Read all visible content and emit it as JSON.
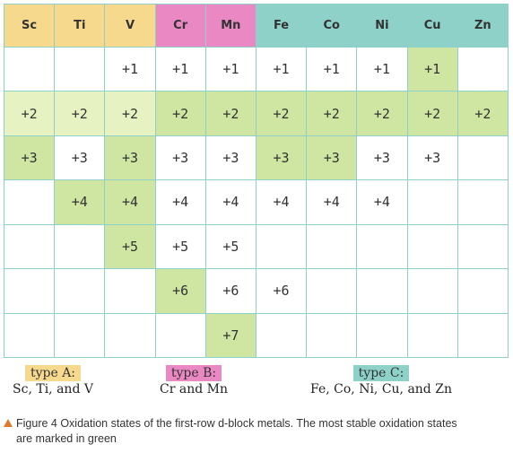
{
  "headers": [
    {
      "label": "Sc",
      "group": "A"
    },
    {
      "label": "Ti",
      "group": "A"
    },
    {
      "label": "V",
      "group": "A"
    },
    {
      "label": "Cr",
      "group": "B"
    },
    {
      "label": "Mn",
      "group": "B"
    },
    {
      "label": "Fe",
      "group": "C"
    },
    {
      "label": "Co",
      "group": "C"
    },
    {
      "label": "Ni",
      "group": "C"
    },
    {
      "label": "Cu",
      "group": "C"
    },
    {
      "label": "Zn",
      "group": "C"
    }
  ],
  "rows": [
    [
      "",
      "",
      "+1",
      "+1",
      "+1",
      "+1",
      "+1",
      "+1",
      "+1",
      ""
    ],
    [
      "+2",
      "+2",
      "+2",
      "+2",
      "+2",
      "+2",
      "+2",
      "+2",
      "+2",
      "+2"
    ],
    [
      "+3",
      "+3",
      "+3",
      "+3",
      "+3",
      "+3",
      "+3",
      "+3",
      "+3",
      ""
    ],
    [
      "",
      "+4",
      "+4",
      "+4",
      "+4",
      "+4",
      "+4",
      "+4",
      "",
      ""
    ],
    [
      "",
      "",
      "+5",
      "+5",
      "+5",
      "",
      "",
      "",
      "",
      ""
    ],
    [
      "",
      "",
      "",
      "+6",
      "+6",
      "+6",
      "",
      "",
      "",
      ""
    ],
    [
      "",
      "",
      "",
      "",
      "+7",
      "",
      "",
      "",
      "",
      ""
    ]
  ],
  "most_stable": [
    [
      0,
      8
    ],
    [
      1,
      3
    ],
    [
      1,
      4
    ],
    [
      1,
      5
    ],
    [
      1,
      6
    ],
    [
      1,
      7
    ],
    [
      1,
      8
    ],
    [
      1,
      9
    ],
    [
      2,
      0
    ],
    [
      2,
      2
    ],
    [
      2,
      5
    ],
    [
      2,
      6
    ],
    [
      3,
      1
    ],
    [
      3,
      2
    ],
    [
      4,
      2
    ],
    [
      5,
      3
    ],
    [
      6,
      4
    ]
  ],
  "highlighted_rows": [
    1
  ],
  "legend": {
    "a": {
      "tag": "type A:",
      "desc": "Sc, Ti, and V"
    },
    "b": {
      "tag": "type B:",
      "desc": "Cr and Mn"
    },
    "c": {
      "tag": "type C:",
      "desc": "Fe, Co, Ni, Cu, and Zn"
    }
  },
  "caption": {
    "line1": "Figure 4 Oxidation states of the first-row d-block metals. The most stable oxidation states",
    "line2": "are marked in green"
  },
  "colors": {
    "type_a": "#f7d98e",
    "type_b": "#ea88c3",
    "type_c": "#8dd1c9",
    "most_stable_green": "#cfe6a2",
    "row_tint": "#e6f2c2",
    "grid_line": "#8fd0c8",
    "caption_marker": "#e0782c"
  },
  "icons": {
    "caption_marker": "orange-triangle"
  }
}
